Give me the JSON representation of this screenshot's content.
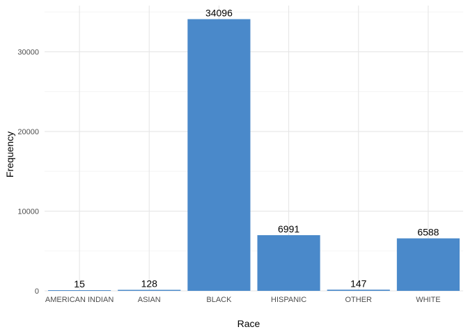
{
  "chart_data": {
    "type": "bar",
    "categories": [
      "AMERICAN INDIAN",
      "ASIAN",
      "BLACK",
      "HISPANIC",
      "OTHER",
      "WHITE"
    ],
    "values": [
      15,
      128,
      34096,
      6991,
      147,
      6588
    ],
    "data_labels": [
      "15",
      "128",
      "34096",
      "6991",
      "147",
      "6588"
    ],
    "xlabel": "Race",
    "ylabel": "Frequency",
    "ylim": [
      0,
      35800
    ],
    "yticks": [
      0,
      10000,
      20000,
      30000
    ],
    "ytick_labels": [
      "0",
      "10000",
      "20000",
      "30000"
    ],
    "grid": true,
    "bar_color": "#4a89ca"
  }
}
